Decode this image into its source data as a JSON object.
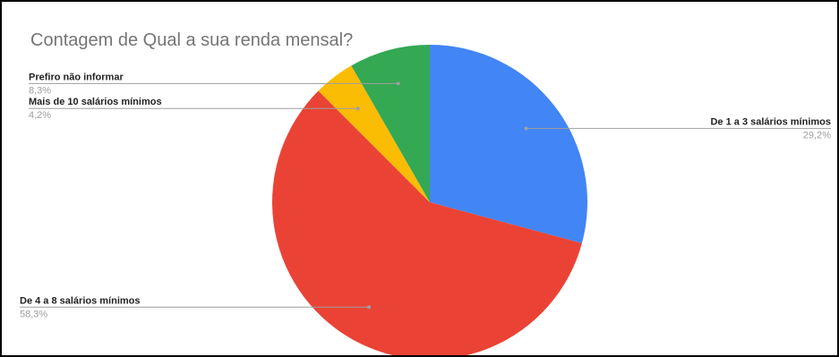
{
  "chart_data": {
    "type": "pie",
    "title": "Contagem de Qual a sua renda mensal?",
    "slices": [
      {
        "label": "De 1 a 3 salários mínimos",
        "percent_label": "29,2%",
        "value": 29.2,
        "color": "#4285f4"
      },
      {
        "label": "De 4 a 8 salários mínimos",
        "percent_label": "58,3%",
        "value": 58.3,
        "color": "#ea4335"
      },
      {
        "label": "Mais de 10 salários mínimos",
        "percent_label": "4,2%",
        "value": 4.2,
        "color": "#fbbc04"
      },
      {
        "label": "Prefiro não informar",
        "percent_label": "8,3%",
        "value": 8.3,
        "color": "#34a853"
      }
    ],
    "legend": "labeled"
  }
}
